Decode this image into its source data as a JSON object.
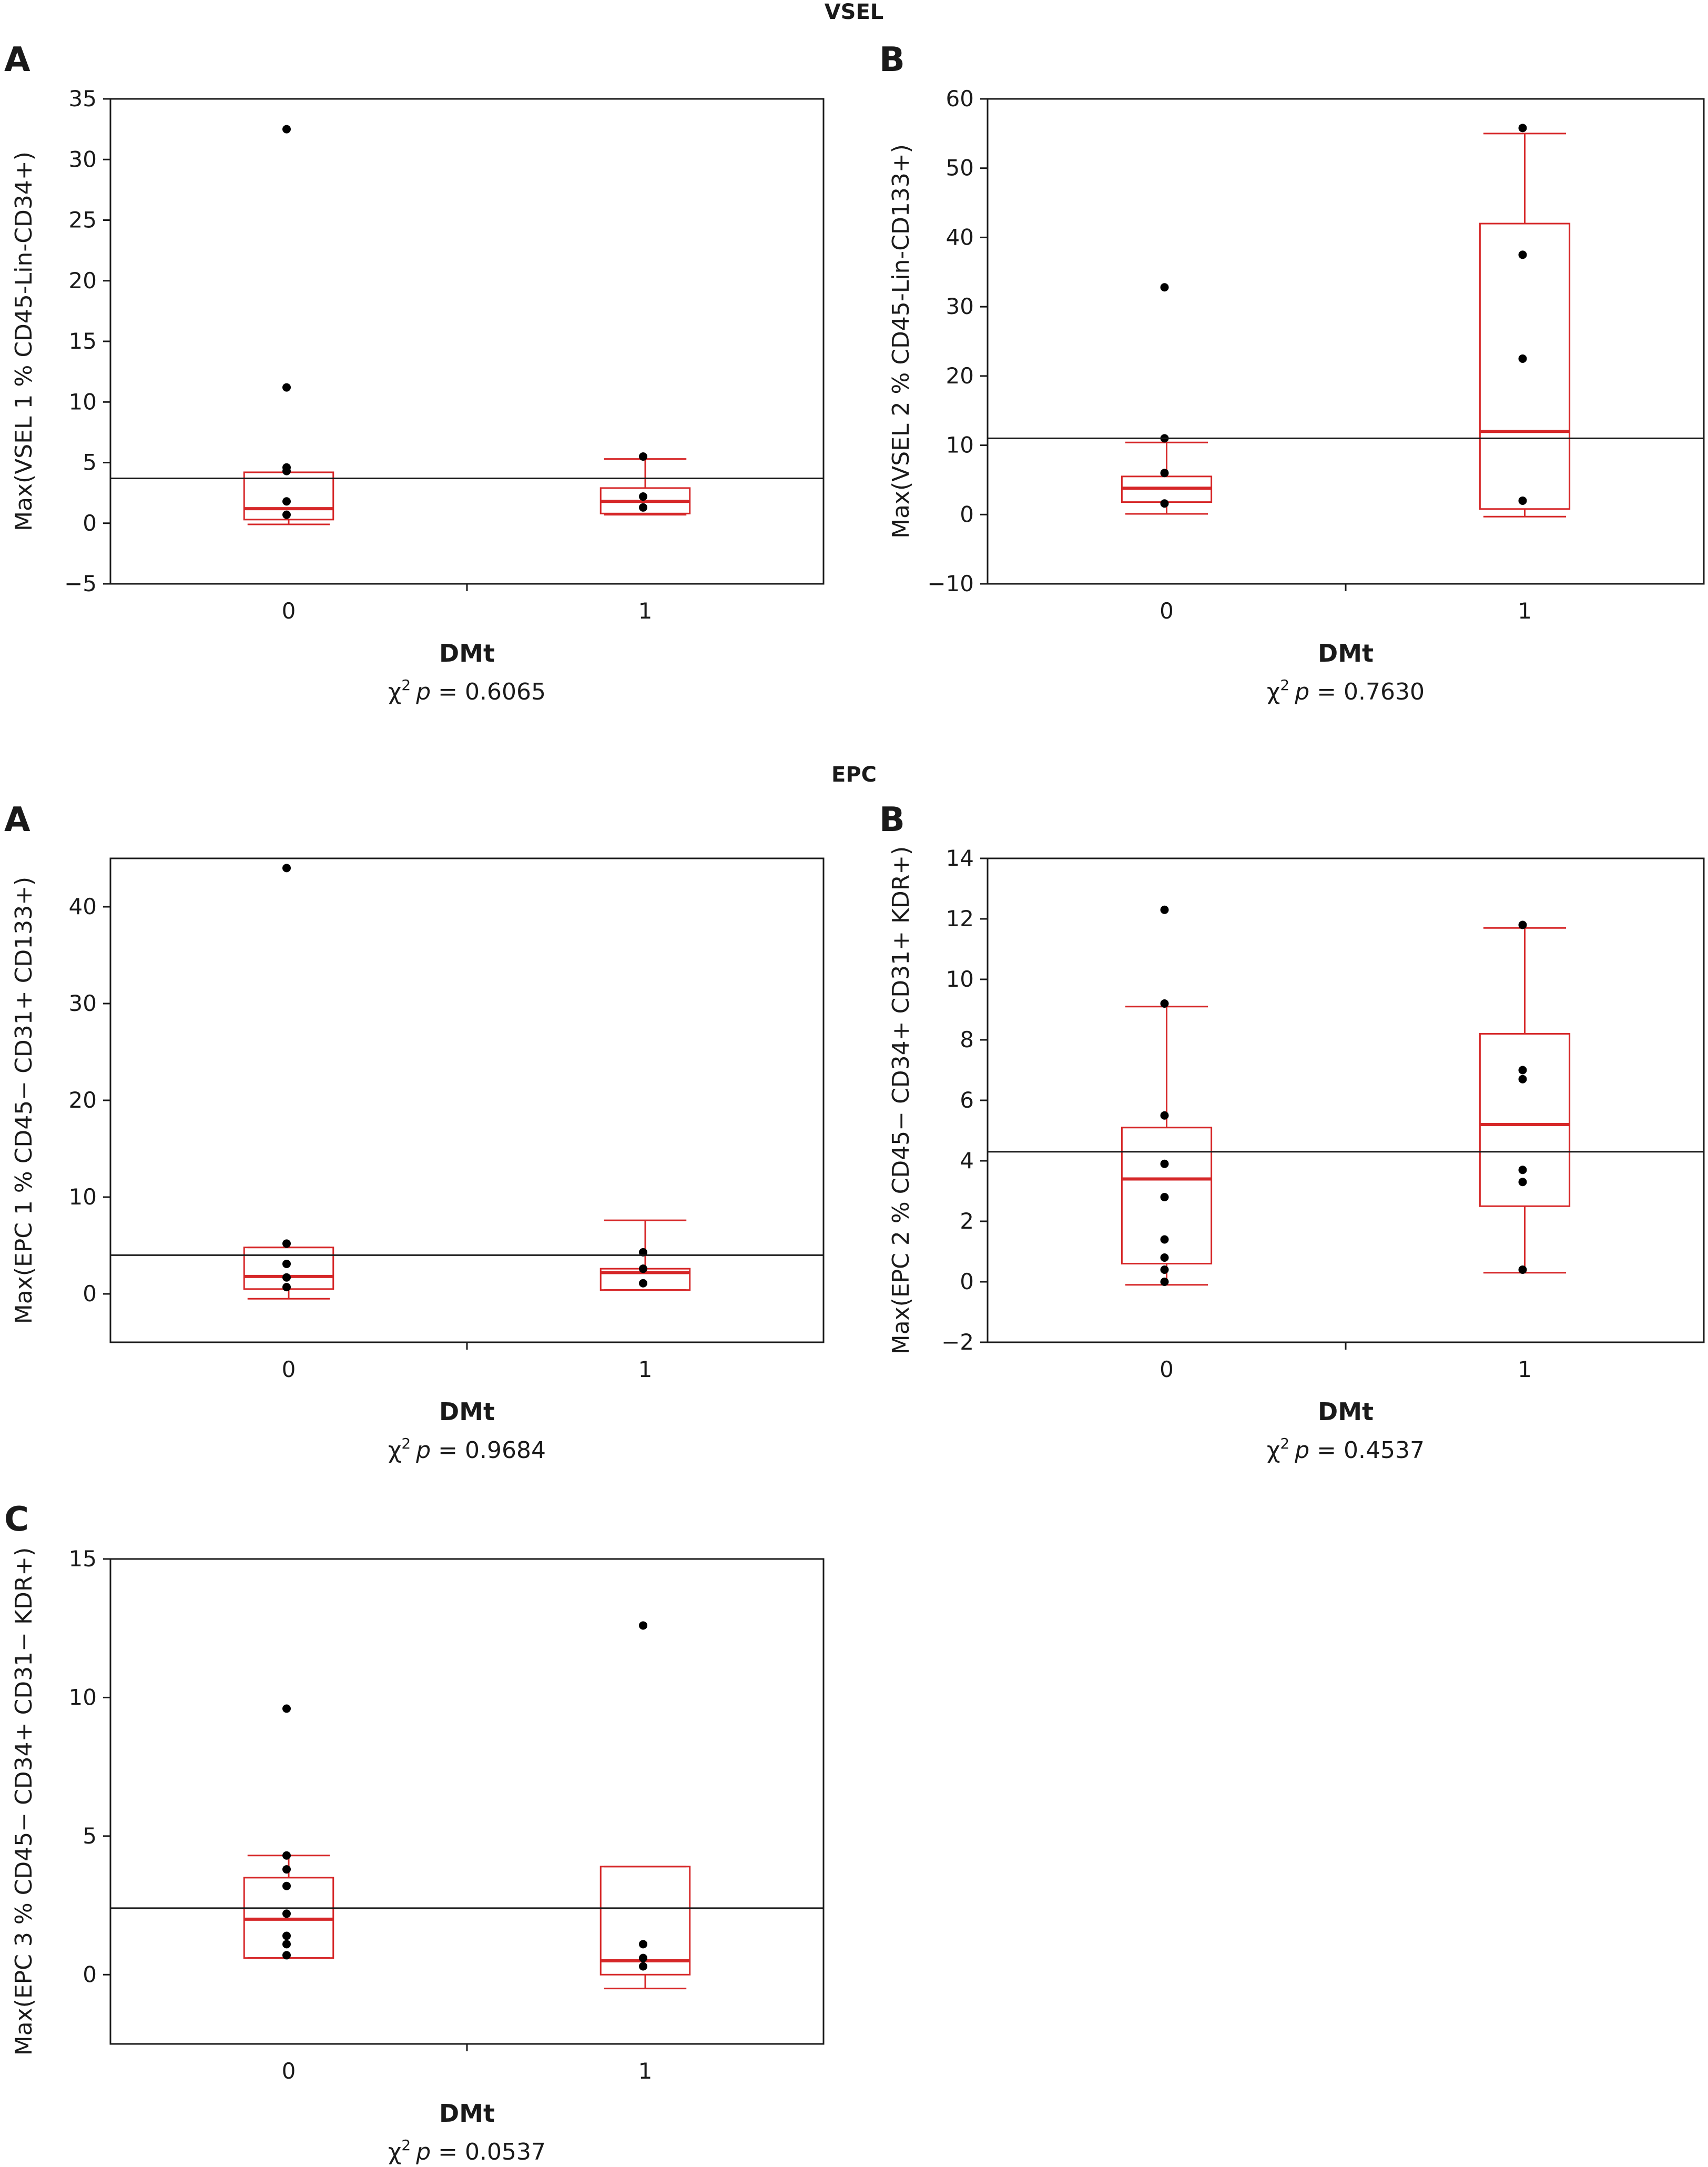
{
  "sections": {
    "vsel_title": "VSEL",
    "epc_title": "EPC"
  },
  "chart_data": [
    {
      "id": "vsel-a",
      "type": "box",
      "panel": "A",
      "ylabel": "Max(VSEL 1 % CD45-Lin-CD34+)",
      "xlabel": "DMt",
      "pvalue_prefix": "χ",
      "pvalue_sup": "2",
      "pvalue_var": "p",
      "pvalue_text": " = 0.6065",
      "ylim": [
        -5,
        35
      ],
      "yticks": [
        -5,
        0,
        5,
        10,
        15,
        20,
        25,
        30,
        35
      ],
      "ytick_labels": [
        "−5",
        "0",
        "5",
        "10",
        "15",
        "20",
        "25",
        "30",
        "35"
      ],
      "categories": [
        "0",
        "1"
      ],
      "reference_line": 3.7,
      "groups": [
        {
          "category": "0",
          "q1": 0.3,
          "median": 1.2,
          "q3": 4.2,
          "whisker_low": -0.1,
          "whisker_high": 4.2,
          "points": [
            32.5,
            11.2,
            4.6,
            4.3,
            1.8,
            0.7
          ]
        },
        {
          "category": "1",
          "q1": 0.8,
          "median": 1.8,
          "q3": 2.9,
          "whisker_low": 0.7,
          "whisker_high": 5.3,
          "points": [
            5.5,
            2.2,
            1.3
          ]
        }
      ]
    },
    {
      "id": "vsel-b",
      "type": "box",
      "panel": "B",
      "ylabel": "Max(VSEL 2 % CD45-Lin-CD133+)",
      "xlabel": "DMt",
      "pvalue_prefix": "χ",
      "pvalue_sup": "2",
      "pvalue_var": "p",
      "pvalue_text": " = 0.7630",
      "ylim": [
        -10,
        60
      ],
      "yticks": [
        -10,
        0,
        10,
        20,
        30,
        40,
        50,
        60
      ],
      "ytick_labels": [
        "−10",
        "0",
        "10",
        "20",
        "30",
        "40",
        "50",
        "60"
      ],
      "categories": [
        "0",
        "1"
      ],
      "reference_line": 11,
      "groups": [
        {
          "category": "0",
          "q1": 1.8,
          "median": 3.8,
          "q3": 5.5,
          "whisker_low": 0.1,
          "whisker_high": 10.4,
          "points": [
            32.8,
            11.0,
            6.0,
            1.6
          ]
        },
        {
          "category": "1",
          "q1": 0.8,
          "median": 12.0,
          "q3": 42.0,
          "whisker_low": -0.3,
          "whisker_high": 55.0,
          "points": [
            55.8,
            37.5,
            22.5,
            2.0
          ]
        }
      ]
    },
    {
      "id": "epc-a",
      "type": "box",
      "panel": "A",
      "ylabel": "Max(EPC 1 % CD45− CD31+ CD133+)",
      "xlabel": "DMt",
      "pvalue_prefix": "χ",
      "pvalue_sup": "2",
      "pvalue_var": "p",
      "pvalue_text": " = 0.9684",
      "ylim": [
        -5,
        45
      ],
      "yticks": [
        0,
        10,
        20,
        30,
        40
      ],
      "ytick_labels": [
        "0",
        "10",
        "20",
        "30",
        "40"
      ],
      "categories": [
        "0",
        "1"
      ],
      "reference_line": 4,
      "groups": [
        {
          "category": "0",
          "q1": 0.5,
          "median": 1.8,
          "q3": 4.8,
          "whisker_low": -0.5,
          "whisker_high": 4.8,
          "points": [
            44.0,
            5.2,
            3.1,
            1.7,
            0.7
          ]
        },
        {
          "category": "1",
          "q1": 0.4,
          "median": 2.2,
          "q3": 2.6,
          "whisker_low": 0.4,
          "whisker_high": 7.6,
          "points": [
            4.3,
            2.6,
            1.1
          ]
        }
      ]
    },
    {
      "id": "epc-b",
      "type": "box",
      "panel": "B",
      "ylabel": "Max(EPC 2 % CD45− CD34+ CD31+ KDR+)",
      "xlabel": "DMt",
      "pvalue_prefix": "χ",
      "pvalue_sup": "2",
      "pvalue_var": "p",
      "pvalue_text": " = 0.4537",
      "ylim": [
        -2,
        14
      ],
      "yticks": [
        -2,
        0,
        2,
        4,
        6,
        8,
        10,
        12,
        14
      ],
      "ytick_labels": [
        "−2",
        "0",
        "2",
        "4",
        "6",
        "8",
        "10",
        "12",
        "14"
      ],
      "categories": [
        "0",
        "1"
      ],
      "reference_line": 4.3,
      "groups": [
        {
          "category": "0",
          "q1": 0.6,
          "median": 3.4,
          "q3": 5.1,
          "whisker_low": -0.1,
          "whisker_high": 9.1,
          "points": [
            12.3,
            9.2,
            5.5,
            3.9,
            2.8,
            1.4,
            0.8,
            0.4,
            0.0
          ]
        },
        {
          "category": "1",
          "q1": 2.5,
          "median": 5.2,
          "q3": 8.2,
          "whisker_low": 0.3,
          "whisker_high": 11.7,
          "points": [
            11.8,
            7.0,
            6.7,
            3.7,
            3.3,
            0.4
          ]
        }
      ]
    },
    {
      "id": "epc-c",
      "type": "box",
      "panel": "C",
      "ylabel": "Max(EPC 3 % CD45− CD34+ CD31− KDR+)",
      "xlabel": "DMt",
      "pvalue_prefix": "χ",
      "pvalue_sup": "2",
      "pvalue_var": "p",
      "pvalue_text": " = 0.0537",
      "ylim": [
        -2.5,
        15
      ],
      "yticks": [
        0,
        5,
        10,
        15
      ],
      "ytick_labels": [
        "0",
        "5",
        "10",
        "15"
      ],
      "categories": [
        "0",
        "1"
      ],
      "reference_line": 2.4,
      "groups": [
        {
          "category": "0",
          "q1": 0.6,
          "median": 2.0,
          "q3": 3.5,
          "whisker_low": 0.6,
          "whisker_high": 4.3,
          "points": [
            9.6,
            4.3,
            3.8,
            3.2,
            2.2,
            1.4,
            1.1,
            0.7
          ]
        },
        {
          "category": "1",
          "q1": 0.0,
          "median": 0.5,
          "q3": 3.9,
          "whisker_low": -0.5,
          "whisker_high": 3.9,
          "points": [
            12.6,
            1.1,
            0.6,
            0.3
          ]
        }
      ]
    }
  ]
}
